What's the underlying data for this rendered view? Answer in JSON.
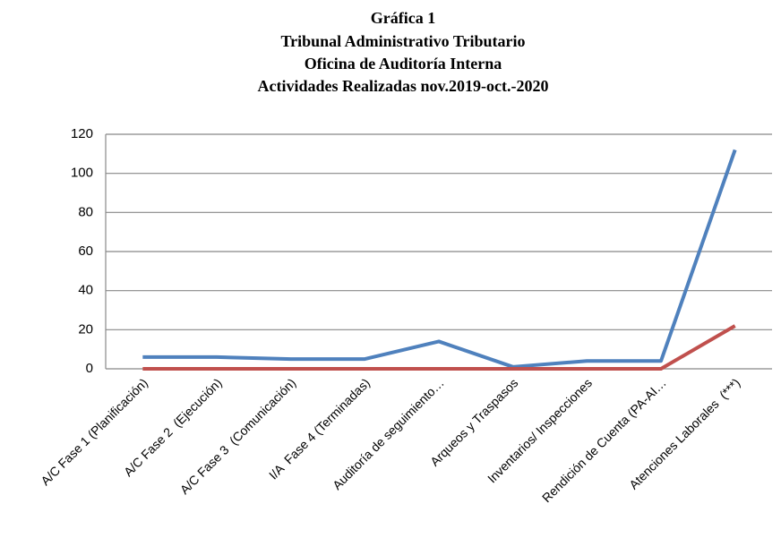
{
  "chart_data": {
    "type": "line",
    "title": [
      "Gráfica 1",
      "Tribunal Administrativo Tributario",
      "Oficina de Auditoría Interna",
      "Actividades Realizadas nov.2019-oct.-2020"
    ],
    "categories": [
      "A/C Fase 1 (Planificación)",
      "A/C Fase 2  (Ejecución)",
      "A/C Fase 3  (Comunicación)",
      "I/A  Fase 4 (Terminadas)",
      "Auditoría de seguimiento…",
      "Arqueos y Traspasos",
      "Inventarios/ Inspecciones",
      "Rendición de Cuenta (PA-AI…",
      "Atenciones Laborales  (***)"
    ],
    "series": [
      {
        "color": "#4f81bd",
        "values": [
          6,
          6,
          5,
          5,
          14,
          1,
          4,
          4,
          112
        ]
      },
      {
        "color": "#c0504d",
        "values": [
          0,
          0,
          0,
          0,
          0,
          0,
          0,
          0,
          22
        ]
      }
    ],
    "ylim": [
      0,
      120
    ],
    "yticks": [
      0,
      20,
      40,
      60,
      80,
      100,
      120
    ],
    "grid": true
  }
}
